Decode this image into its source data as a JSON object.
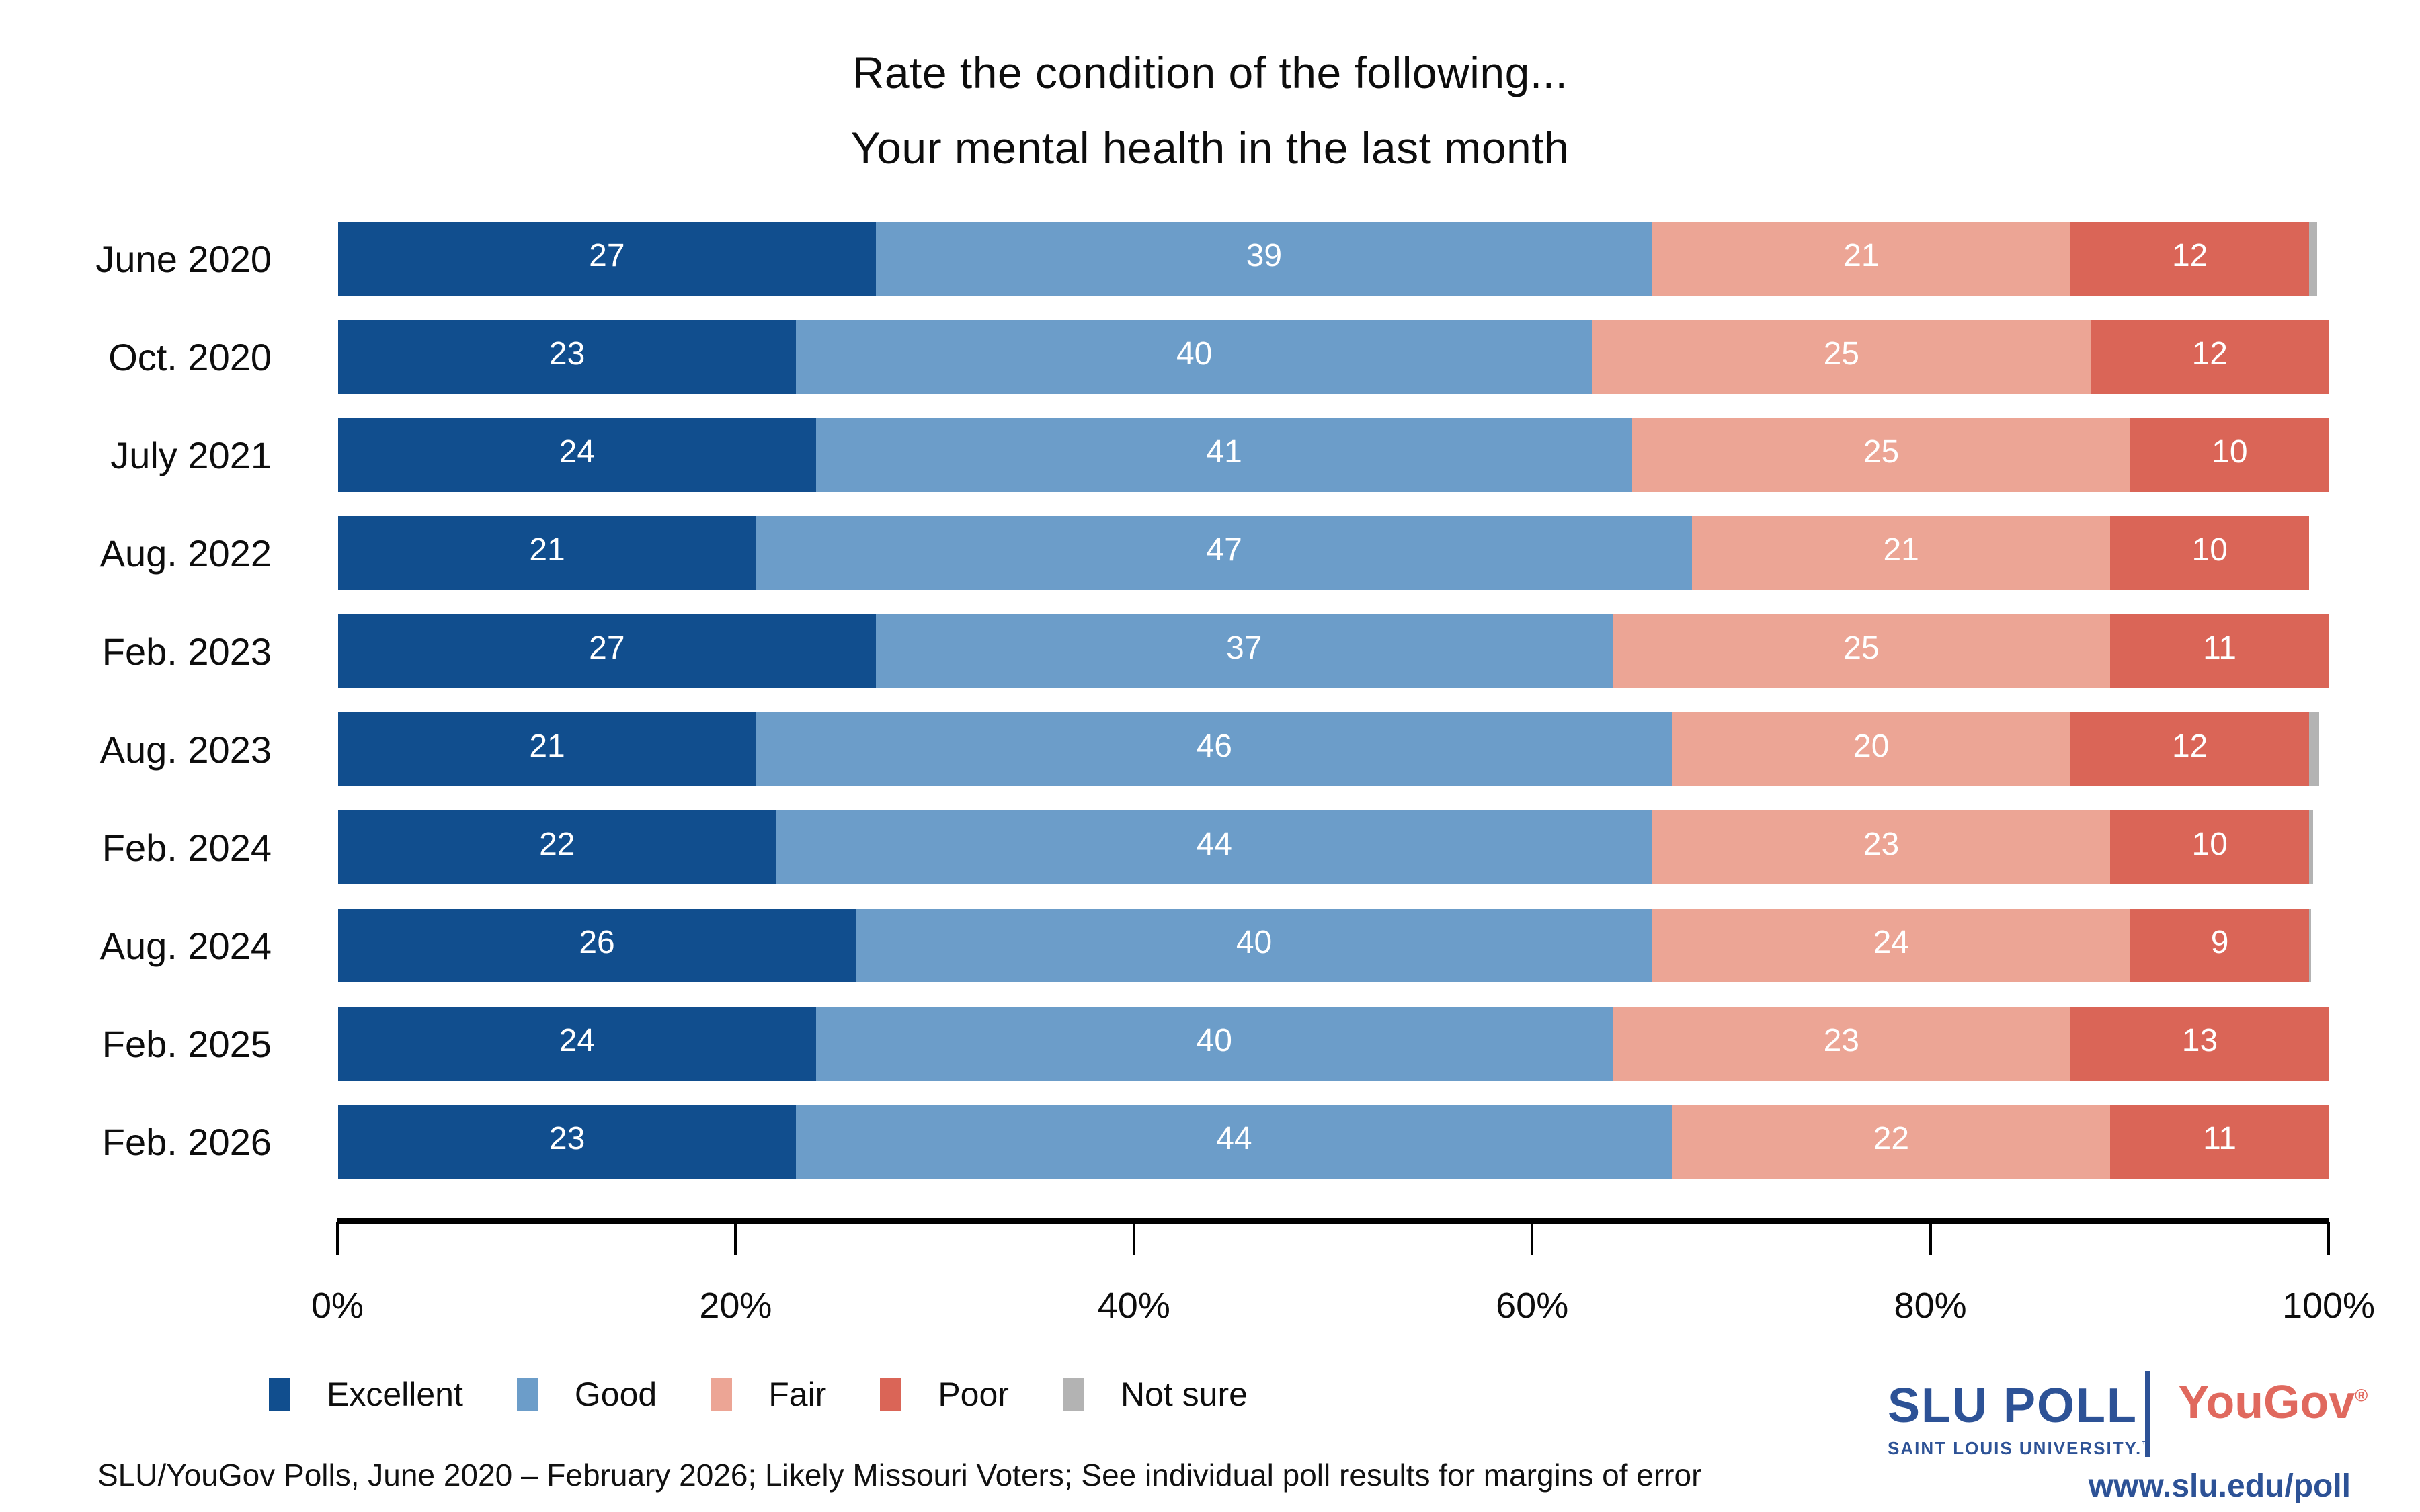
{
  "title": {
    "line1": "Rate the condition of the following...",
    "line2": "Your mental health in the last month"
  },
  "chart_data": {
    "type": "bar",
    "orientation": "horizontal-stacked",
    "title": "Rate the condition of the following... Your mental health in the last month",
    "categories": [
      "June 2020",
      "Oct. 2020",
      "July 2021",
      "Aug. 2022",
      "Feb. 2023",
      "Aug. 2023",
      "Feb. 2024",
      "Aug. 2024",
      "Feb. 2025",
      "Feb. 2026"
    ],
    "series": [
      {
        "key": "excellent",
        "name": "Excellent",
        "color": "#114E8E",
        "labeled": true,
        "values": [
          27,
          23,
          24,
          21,
          27,
          21,
          22,
          26,
          24,
          23
        ]
      },
      {
        "key": "good",
        "name": "Good",
        "color": "#6C9DC9",
        "labeled": true,
        "values": [
          39,
          40,
          41,
          47,
          37,
          46,
          44,
          40,
          40,
          44
        ]
      },
      {
        "key": "fair",
        "name": "Fair",
        "color": "#ECA595",
        "labeled": true,
        "values": [
          21,
          25,
          25,
          21,
          25,
          20,
          23,
          24,
          23,
          22
        ]
      },
      {
        "key": "poor",
        "name": "Poor",
        "color": "#DA6557",
        "labeled": true,
        "values": [
          12,
          12,
          10,
          10,
          11,
          12,
          10,
          9,
          13,
          11
        ]
      },
      {
        "key": "not-sure",
        "name": "Not sure",
        "color": "#B3B3B3",
        "labeled": false,
        "values": [
          0.4,
          0.3,
          1.6,
          0,
          0.6,
          0.5,
          0.2,
          0.1,
          0,
          0.2
        ]
      }
    ],
    "xlabel": "",
    "ylabel": "",
    "axis": {
      "tick_labels": [
        "0%",
        "20%",
        "40%",
        "60%",
        "80%",
        "100%"
      ],
      "tick_values": [
        0,
        20,
        40,
        60,
        80,
        100
      ],
      "range": [
        0,
        100
      ],
      "grid": false
    },
    "legend_position": "bottom-left"
  },
  "footer": {
    "source": "SLU/YouGov Polls, June 2020 – February 2026; Likely Missouri Voters; See individual poll results for margins of error",
    "slu_poll": "SLU POLL",
    "slu_university": "SAINT LOUIS UNIVERSITY.",
    "slu_tm": "™",
    "yougov": "YouGov",
    "registered_mark": "®",
    "url": "www.slu.edu/poll"
  },
  "colors": {
    "excellent": "#114E8E",
    "good": "#6C9DC9",
    "fair": "#ECA595",
    "poor": "#DA6557",
    "not_sure": "#B3B3B3",
    "slu_blue": "#2D5296",
    "yougov_red": "#E0695E",
    "axis": "#000000",
    "text": "#0D0D0D",
    "background": "#FFFFFF"
  }
}
